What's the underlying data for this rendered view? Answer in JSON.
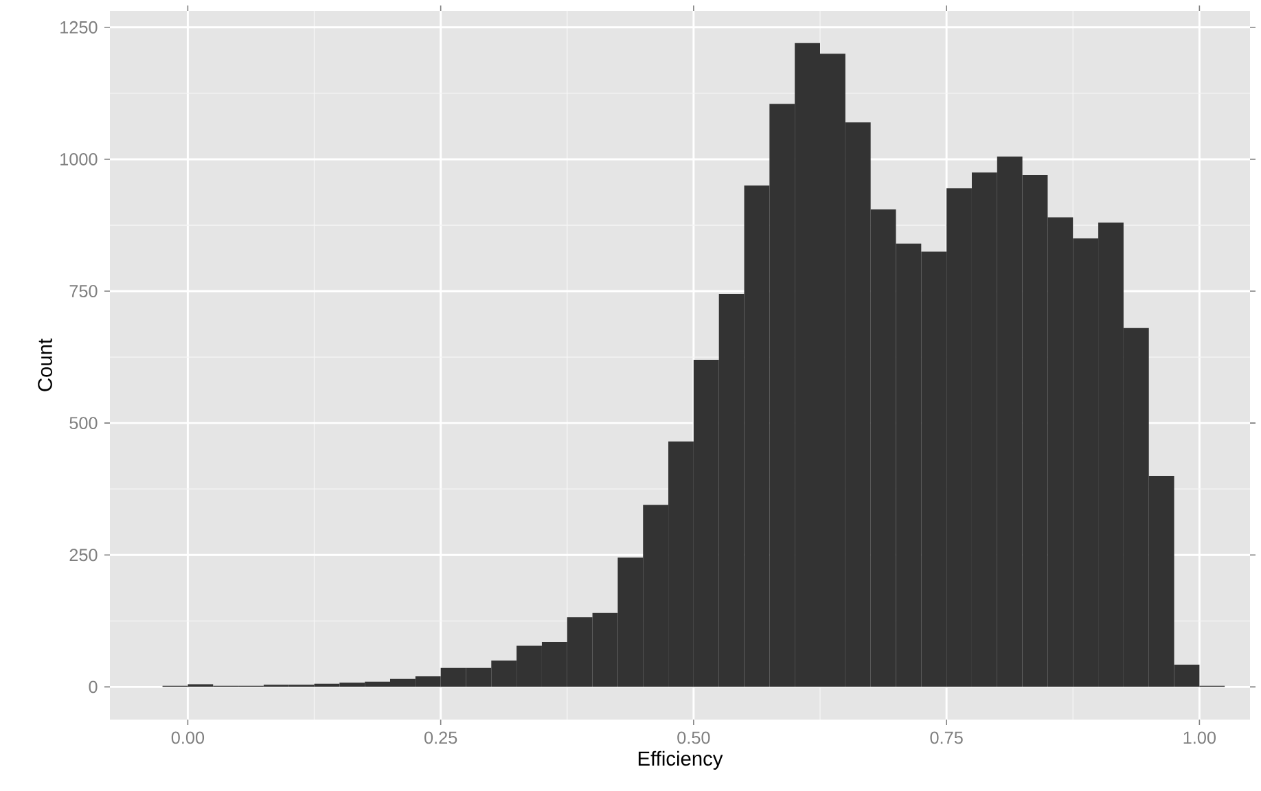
{
  "chart_data": {
    "type": "histogram",
    "xlabel": "Efficiency",
    "ylabel": "Count",
    "color": "#333333",
    "grid": true,
    "bins": [
      -0.025,
      0,
      0.025,
      0.05,
      0.075,
      0.1,
      0.125,
      0.15,
      0.175,
      0.2,
      0.225,
      0.25,
      0.275,
      0.3,
      0.325,
      0.35,
      0.375,
      0.4,
      0.425,
      0.45,
      0.475,
      0.5,
      0.525,
      0.55,
      0.575,
      0.6,
      0.625,
      0.65,
      0.675,
      0.7,
      0.725,
      0.75,
      0.775,
      0.8,
      0.825,
      0.85,
      0.875,
      0.9,
      0.925,
      0.95,
      0.975,
      1.0,
      1.025
    ],
    "values": [
      2,
      5,
      2,
      2,
      4,
      4,
      6,
      8,
      10,
      15,
      20,
      36,
      36,
      50,
      78,
      85,
      132,
      140,
      245,
      345,
      465,
      620,
      745,
      950,
      1105,
      1220,
      1200,
      1070,
      905,
      840,
      825,
      945,
      975,
      1005,
      970,
      890,
      850,
      880,
      680,
      400,
      42,
      2
    ],
    "xlim": [
      -0.077,
      1.05
    ],
    "ylim": [
      -62,
      1281
    ],
    "xticks": [
      {
        "value": 0,
        "label": "0.00"
      },
      {
        "value": 0.25,
        "label": "0.25"
      },
      {
        "value": 0.5,
        "label": "0.50"
      },
      {
        "value": 0.75,
        "label": "0.75"
      },
      {
        "value": 1,
        "label": "1.00"
      }
    ],
    "yticks": [
      0,
      250,
      500,
      750,
      1000,
      1250
    ]
  }
}
